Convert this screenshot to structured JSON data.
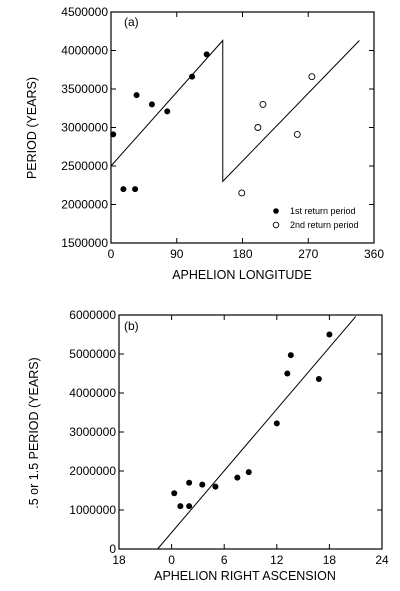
{
  "chart_data": [
    {
      "type": "scatter",
      "panel_label": "(a)",
      "xlabel": "APHELION LONGITUDE",
      "ylabel": "PERIOD (YEARS)",
      "xlim": [
        0,
        360
      ],
      "ylim": [
        1500000,
        4500000
      ],
      "xticks": [
        0,
        90,
        180,
        270,
        360
      ],
      "yticks": [
        1500000,
        2000000,
        2500000,
        3000000,
        3500000,
        4000000,
        4500000
      ],
      "grid": false,
      "legend": {
        "placement": "bottom-right",
        "entries": [
          {
            "label": "1st return period",
            "marker": "filled"
          },
          {
            "label": "2nd return period",
            "marker": "open"
          }
        ]
      },
      "series": [
        {
          "name": "1st return period",
          "marker": "filled",
          "points": [
            {
              "x": 3,
              "y": 2910000
            },
            {
              "x": 17,
              "y": 2200000
            },
            {
              "x": 33,
              "y": 2200000
            },
            {
              "x": 35,
              "y": 3420000
            },
            {
              "x": 56,
              "y": 3300000
            },
            {
              "x": 77,
              "y": 3210000
            },
            {
              "x": 111,
              "y": 3660000
            },
            {
              "x": 131,
              "y": 3950000
            }
          ]
        },
        {
          "name": "2nd return period",
          "marker": "open",
          "points": [
            {
              "x": 179,
              "y": 2150000
            },
            {
              "x": 201,
              "y": 3000000
            },
            {
              "x": 208,
              "y": 3300000
            },
            {
              "x": 255,
              "y": 2910000
            },
            {
              "x": 275,
              "y": 3660000
            }
          ]
        }
      ],
      "fit_line": [
        {
          "x": 0,
          "y": 2500000
        },
        {
          "x": 153,
          "y": 4130000
        },
        {
          "x": 153,
          "y": 2300000
        },
        {
          "x": 340,
          "y": 4130000
        }
      ]
    },
    {
      "type": "scatter",
      "panel_label": "(b)",
      "xlabel": "APHELION RIGHT ASCENSION",
      "ylabel": ".5 or 1.5 PERIOD (YEARS)",
      "x_ticklabels": [
        "18",
        "0",
        "6",
        "12",
        "18",
        "24"
      ],
      "ylim": [
        0,
        6000000
      ],
      "yticks": [
        0,
        1000000,
        2000000,
        3000000,
        4000000,
        5000000,
        6000000
      ],
      "grid": false,
      "series": [
        {
          "marker": "filled",
          "points": [
            {
              "x": 0.3,
              "y": 1430000
            },
            {
              "x": 1.0,
              "y": 1100000
            },
            {
              "x": 2.0,
              "y": 1100000
            },
            {
              "x": 2.0,
              "y": 1700000
            },
            {
              "x": 3.5,
              "y": 1650000
            },
            {
              "x": 5.0,
              "y": 1600000
            },
            {
              "x": 7.5,
              "y": 1830000
            },
            {
              "x": 8.8,
              "y": 1970000
            },
            {
              "x": 12.0,
              "y": 3220000
            },
            {
              "x": 13.2,
              "y": 4500000
            },
            {
              "x": 13.6,
              "y": 4970000
            },
            {
              "x": 16.8,
              "y": 4360000
            },
            {
              "x": 18.0,
              "y": 5500000
            }
          ]
        }
      ],
      "fit_line": [
        {
          "x": -1.6,
          "y": 0
        },
        {
          "x": 21,
          "y": 5960000
        }
      ]
    }
  ]
}
